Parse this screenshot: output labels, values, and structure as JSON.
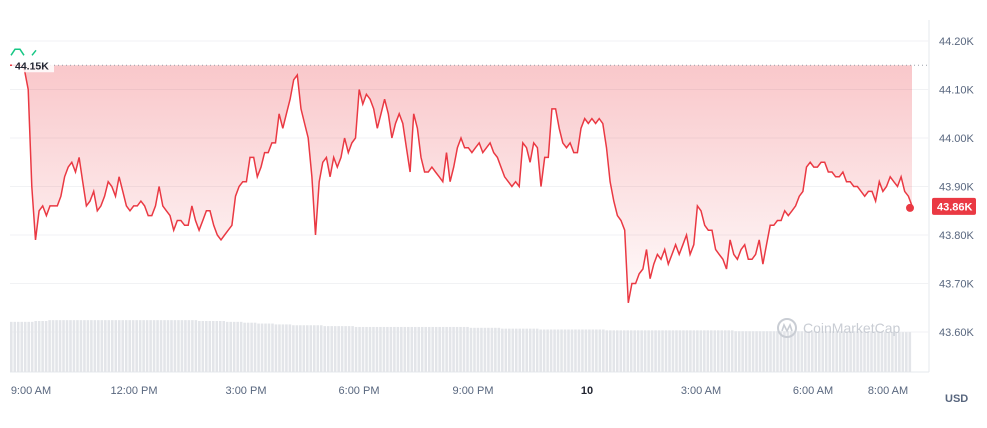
{
  "chart_data": {
    "type": "area",
    "title": "",
    "currency": "USD",
    "ylim": [
      43.55,
      44.25
    ],
    "y_ticks": [
      "44.20K",
      "44.10K",
      "44.00K",
      "43.90K",
      "43.80K",
      "43.70K",
      "43.60K"
    ],
    "x_ticks": [
      "9:00 AM",
      "12:00 PM",
      "3:00 PM",
      "6:00 PM",
      "9:00 PM",
      "10",
      "3:00 AM",
      "6:00 AM",
      "8:00 AM"
    ],
    "open_label": "44.15K",
    "open_value": 44.15,
    "current_label": "43.86K",
    "current_value": 43.86,
    "watermark": "CoinMarketCap",
    "colors": {
      "line": "#ea3943",
      "fill": "#ea3943",
      "volume": "#e3e5e9",
      "current_badge": "#ea3943"
    },
    "series": [
      {
        "values": [
          44.15,
          44.15,
          44.15,
          44.15,
          44.14,
          44.1,
          43.9,
          43.79,
          43.85,
          43.86,
          43.84,
          43.86,
          43.86,
          43.86,
          43.88,
          43.92,
          43.94,
          43.95,
          43.93,
          43.96,
          43.91,
          43.86,
          43.87,
          43.89,
          43.85,
          43.86,
          43.88,
          43.91,
          43.9,
          43.88,
          43.92,
          43.89,
          43.86,
          43.85,
          43.86,
          43.86,
          43.87,
          43.86,
          43.84,
          43.84,
          43.86,
          43.9,
          43.86,
          43.85,
          43.84,
          43.81,
          43.83,
          43.83,
          43.82,
          43.82,
          43.86,
          43.83,
          43.81,
          43.83,
          43.85,
          43.85,
          43.82,
          43.8,
          43.79,
          43.8,
          43.81,
          43.82,
          43.88,
          43.9,
          43.91,
          43.91,
          43.96,
          43.96,
          43.92,
          43.94,
          43.97,
          43.97,
          43.99,
          43.99,
          44.05,
          44.02,
          44.05,
          44.08,
          44.12,
          44.13,
          44.06,
          44.03,
          44.0,
          43.92,
          43.8,
          43.91,
          43.95,
          43.96,
          43.92,
          43.96,
          43.94,
          43.96,
          44.0,
          43.97,
          43.99,
          44.0,
          44.1,
          44.07,
          44.09,
          44.08,
          44.06,
          44.02,
          44.05,
          44.08,
          44.05,
          44.0,
          44.03,
          44.05,
          44.03,
          43.98,
          43.93,
          44.05,
          44.02,
          43.96,
          43.93,
          43.93,
          43.94,
          43.93,
          43.92,
          43.91,
          43.97,
          43.91,
          43.94,
          43.98,
          44.0,
          43.98,
          43.98,
          43.97,
          43.98,
          43.99,
          43.97,
          43.98,
          43.99,
          43.97,
          43.96,
          43.94,
          43.92,
          43.91,
          43.9,
          43.91,
          43.9,
          43.99,
          43.98,
          43.95,
          43.99,
          43.98,
          43.9,
          43.96,
          43.96,
          44.06,
          44.06,
          44.02,
          43.99,
          43.98,
          43.99,
          43.97,
          43.97,
          44.02,
          44.04,
          44.03,
          44.04,
          44.03,
          44.04,
          44.03,
          43.98,
          43.91,
          43.87,
          43.84,
          43.83,
          43.81,
          43.66,
          43.7,
          43.7,
          43.72,
          43.73,
          43.77,
          43.71,
          43.74,
          43.76,
          43.75,
          43.77,
          43.74,
          43.76,
          43.78,
          43.76,
          43.78,
          43.8,
          43.76,
          43.78,
          43.86,
          43.85,
          43.82,
          43.81,
          43.81,
          43.77,
          43.76,
          43.75,
          43.73,
          43.79,
          43.76,
          43.75,
          43.77,
          43.78,
          43.75,
          43.75,
          43.76,
          43.79,
          43.74,
          43.78,
          43.82,
          43.82,
          43.83,
          43.83,
          43.85,
          43.84,
          43.85,
          43.86,
          43.88,
          43.89,
          43.94,
          43.95,
          43.94,
          43.94,
          43.95,
          43.95,
          43.93,
          43.93,
          43.92,
          43.92,
          43.93,
          43.91,
          43.91,
          43.9,
          43.9,
          43.89,
          43.88,
          43.89,
          43.89,
          43.87,
          43.91,
          43.89,
          43.9,
          43.92,
          43.91,
          43.9,
          43.92,
          43.89,
          43.88,
          43.86
        ]
      }
    ],
    "volume": [
      59,
      59,
      59,
      59,
      59,
      59,
      59,
      60,
      60,
      60,
      60,
      61,
      61,
      61,
      61,
      61,
      61,
      61,
      61,
      61,
      61,
      61,
      61,
      61,
      61,
      61,
      61,
      61,
      61,
      61,
      61,
      61,
      61,
      61,
      61,
      61,
      61,
      61,
      61,
      61,
      61,
      61,
      61,
      61,
      61,
      61,
      61,
      61,
      61,
      61,
      61,
      61,
      61,
      61,
      60,
      60,
      60,
      60,
      60,
      60,
      60,
      60,
      59,
      59,
      59,
      59,
      59,
      58,
      58,
      58,
      58,
      57,
      57,
      57,
      57,
      57,
      56,
      56,
      56,
      56,
      56,
      55,
      55,
      55,
      55,
      55,
      55,
      55,
      55,
      55,
      54,
      54,
      54,
      54,
      54,
      54,
      54,
      54,
      54,
      53,
      53,
      53,
      53,
      53,
      53,
      53,
      53,
      53,
      53,
      53,
      53,
      53,
      53,
      53,
      53,
      53,
      53,
      53,
      53,
      53,
      53,
      53,
      53,
      53,
      53,
      53,
      53,
      53,
      53,
      53,
      53,
      53,
      52,
      52,
      52,
      52,
      52,
      52,
      52,
      52,
      52,
      51,
      51,
      51,
      51,
      51,
      51,
      51,
      51,
      51,
      51,
      51,
      50,
      50,
      50,
      50,
      50,
      50,
      50,
      50,
      50,
      50,
      50,
      50,
      50,
      50,
      50,
      50,
      50,
      50,
      50,
      49,
      49,
      49,
      49,
      49,
      49,
      49,
      49,
      49,
      49,
      49,
      49,
      49,
      49,
      49,
      49,
      49,
      49,
      49,
      49,
      49,
      49,
      49,
      49,
      49,
      49,
      49,
      49,
      49,
      49,
      49,
      49,
      49,
      49,
      49,
      49,
      49,
      48,
      48,
      48,
      48,
      48,
      48,
      48,
      48,
      48,
      48,
      48,
      48,
      48,
      48,
      48,
      48,
      48,
      48,
      48,
      48,
      48,
      48,
      48,
      48,
      48,
      48,
      48,
      48,
      48,
      48,
      48,
      48,
      48,
      48,
      48,
      48,
      48,
      48,
      48,
      48,
      48,
      48,
      48,
      47,
      47,
      47,
      47,
      47,
      47,
      47,
      47
    ]
  }
}
